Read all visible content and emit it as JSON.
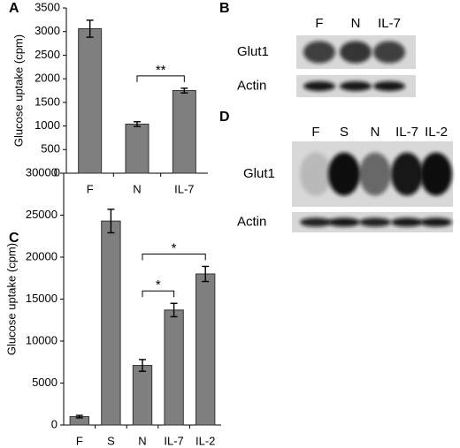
{
  "chart_data": [
    {
      "type": "bar",
      "panel": "A",
      "ylabel": "Glucose uptake (cpm)",
      "categories": [
        "F",
        "N",
        "IL-7"
      ],
      "values": [
        3060,
        1040,
        1750
      ],
      "errors": [
        180,
        50,
        50
      ],
      "color": "#7f7f7f",
      "ylim": [
        0,
        3500
      ],
      "yticks": [
        0,
        500,
        1000,
        1500,
        2000,
        2500,
        3000,
        3500
      ],
      "annotations": [
        {
          "text": "**",
          "between": [
            1,
            2
          ]
        }
      ]
    },
    {
      "type": "bar",
      "panel": "C",
      "ylabel": "Glucose uptake (cpm)",
      "categories": [
        "F",
        "S",
        "N",
        "IL-7",
        "IL-2"
      ],
      "values": [
        1000,
        24300,
        7100,
        13700,
        18000
      ],
      "errors": [
        150,
        1400,
        700,
        800,
        900
      ],
      "color": "#7f7f7f",
      "ylim": [
        0,
        30000
      ],
      "yticks": [
        0,
        5000,
        10000,
        15000,
        20000,
        25000,
        30000
      ],
      "annotations": [
        {
          "text": "*",
          "between": [
            2,
            3
          ]
        },
        {
          "text": "*",
          "between": [
            2,
            4
          ]
        }
      ]
    }
  ],
  "blots": [
    {
      "panel": "B",
      "lanes": [
        "F",
        "N",
        "IL-7"
      ],
      "rows": [
        "Glut1",
        "Actin"
      ]
    },
    {
      "panel": "D",
      "lanes": [
        "F",
        "S",
        "N",
        "IL-7",
        "IL-2"
      ],
      "rows": [
        "Glut1",
        "Actin"
      ]
    }
  ]
}
